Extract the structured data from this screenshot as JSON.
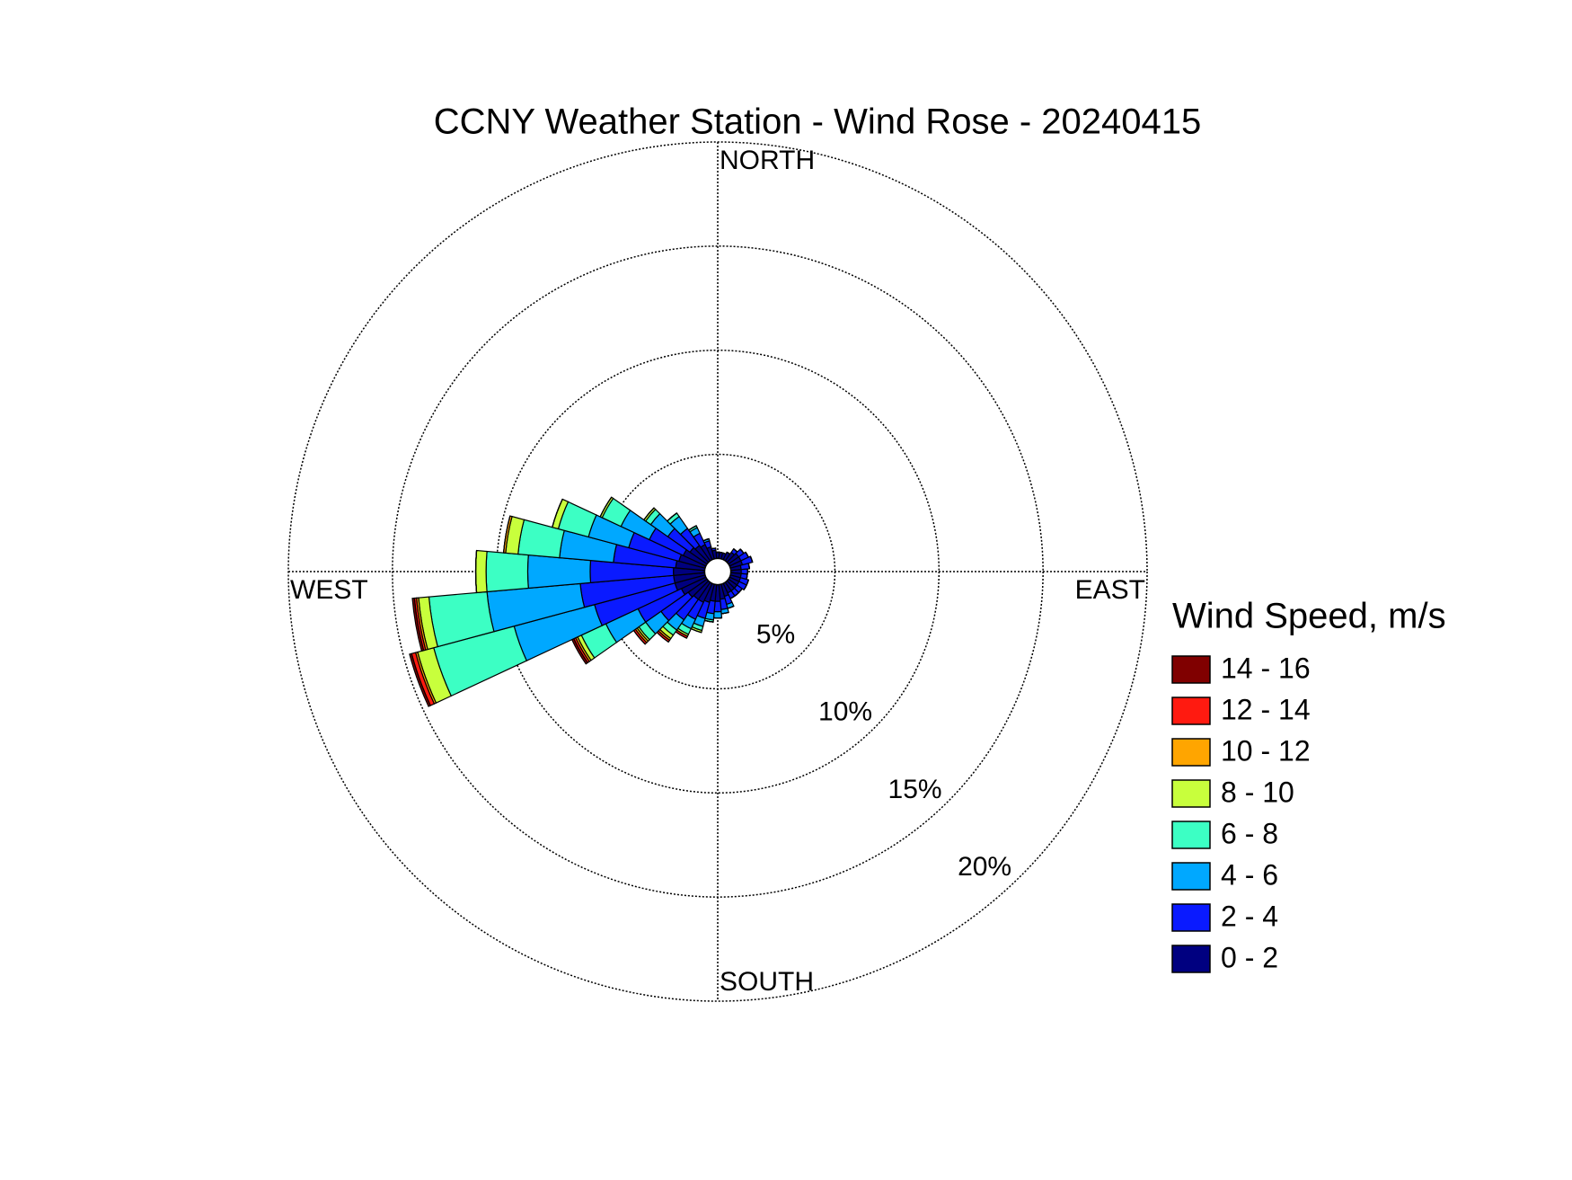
{
  "chart_data": {
    "type": "windrose",
    "title": "CCNY Weather Station - Wind Rose - 20240415",
    "direction_labels": [
      "NORTH",
      "EAST",
      "SOUTH",
      "WEST"
    ],
    "legend_title": "Wind Speed, m/s",
    "x": [
      0,
      10,
      20,
      30,
      40,
      50,
      60,
      70,
      80,
      90,
      100,
      110,
      120,
      130,
      140,
      150,
      160,
      170,
      180,
      190,
      200,
      210,
      220,
      230,
      240,
      250,
      260,
      270,
      280,
      290,
      300,
      310,
      320,
      330,
      340,
      350
    ],
    "xlim": [
      0,
      360
    ],
    "rlim": [
      0,
      20
    ],
    "rticks": [
      {
        "value": 5,
        "label": "5%"
      },
      {
        "value": 10,
        "label": "10%"
      },
      {
        "value": 15,
        "label": "15%"
      },
      {
        "value": 20,
        "label": "20%"
      }
    ],
    "grid": true,
    "series": [
      {
        "name": "0 - 2",
        "color": "#000080",
        "values": [
          0.3,
          0.3,
          0.3,
          0.4,
          0.5,
          0.6,
          0.6,
          0.6,
          0.5,
          0.5,
          0.5,
          0.5,
          0.5,
          0.5,
          0.5,
          0.5,
          0.6,
          0.7,
          0.8,
          0.8,
          0.9,
          1.0,
          1.0,
          1.1,
          1.3,
          1.5,
          1.5,
          1.5,
          1.4,
          1.3,
          1.2,
          1.0,
          0.9,
          0.8,
          0.6,
          0.4
        ]
      },
      {
        "name": "2 - 4",
        "color": "#0a1aff",
        "values": [
          0,
          0,
          0,
          0,
          0.2,
          0.3,
          0.4,
          0.5,
          0.4,
          0.3,
          0.3,
          0.4,
          0.4,
          0.3,
          0.3,
          0.3,
          0.4,
          0.5,
          0.5,
          0.6,
          0.8,
          0.9,
          1.2,
          1.6,
          2.3,
          4.0,
          4.5,
          4.0,
          3.0,
          2.5,
          1.8,
          1.3,
          1.0,
          0.6,
          0.3,
          0.1
        ]
      },
      {
        "name": "4 - 6",
        "color": "#00a8ff",
        "values": [
          0,
          0,
          0,
          0,
          0,
          0,
          0,
          0,
          0,
          0,
          0,
          0,
          0,
          0,
          0,
          0,
          0.2,
          0.2,
          0.3,
          0.3,
          0.4,
          0.5,
          0.6,
          0.9,
          1.7,
          4.0,
          4.5,
          3.0,
          2.6,
          2.0,
          1.5,
          1.0,
          0.7,
          0.3,
          0.1,
          0
        ]
      },
      {
        "name": "6 - 8",
        "color": "#3cffc4",
        "values": [
          0,
          0,
          0,
          0,
          0,
          0,
          0,
          0,
          0,
          0,
          0,
          0,
          0,
          0,
          0,
          0,
          0,
          0,
          0,
          0.1,
          0.2,
          0.3,
          0.3,
          0.4,
          1.3,
          4.0,
          2.8,
          2.0,
          2.0,
          1.5,
          1.0,
          0.3,
          0.2,
          0.1,
          0,
          0
        ]
      },
      {
        "name": "8 - 10",
        "color": "#c8ff3c",
        "values": [
          0,
          0,
          0,
          0,
          0,
          0,
          0,
          0,
          0,
          0,
          0,
          0,
          0,
          0,
          0,
          0,
          0,
          0,
          0,
          0,
          0.1,
          0.1,
          0.2,
          0.1,
          0.2,
          0.8,
          0.5,
          0.5,
          0.6,
          0.3,
          0.1,
          0.1,
          0,
          0,
          0,
          0
        ]
      },
      {
        "name": "10 - 12",
        "color": "#ffa500",
        "values": [
          0,
          0,
          0,
          0,
          0,
          0,
          0,
          0,
          0,
          0,
          0,
          0,
          0,
          0,
          0,
          0,
          0,
          0,
          0,
          0,
          0,
          0,
          0.1,
          0.1,
          0.1,
          0.1,
          0.1,
          0,
          0.1,
          0,
          0,
          0,
          0,
          0,
          0,
          0
        ]
      },
      {
        "name": "12 - 14",
        "color": "#ff1a10",
        "values": [
          0,
          0,
          0,
          0,
          0,
          0,
          0,
          0,
          0,
          0,
          0,
          0,
          0,
          0,
          0,
          0,
          0,
          0,
          0,
          0,
          0,
          0.1,
          0.1,
          0.1,
          0.1,
          0.2,
          0.1,
          0,
          0,
          0,
          0,
          0,
          0,
          0,
          0,
          0
        ]
      },
      {
        "name": "14 - 16",
        "color": "#800000",
        "values": [
          0,
          0,
          0,
          0,
          0,
          0,
          0,
          0,
          0,
          0,
          0,
          0,
          0,
          0,
          0,
          0,
          0,
          0,
          0,
          0,
          0,
          0,
          0,
          0,
          0.1,
          0.1,
          0.1,
          0,
          0,
          0,
          0,
          0,
          0,
          0,
          0,
          0
        ]
      }
    ]
  }
}
